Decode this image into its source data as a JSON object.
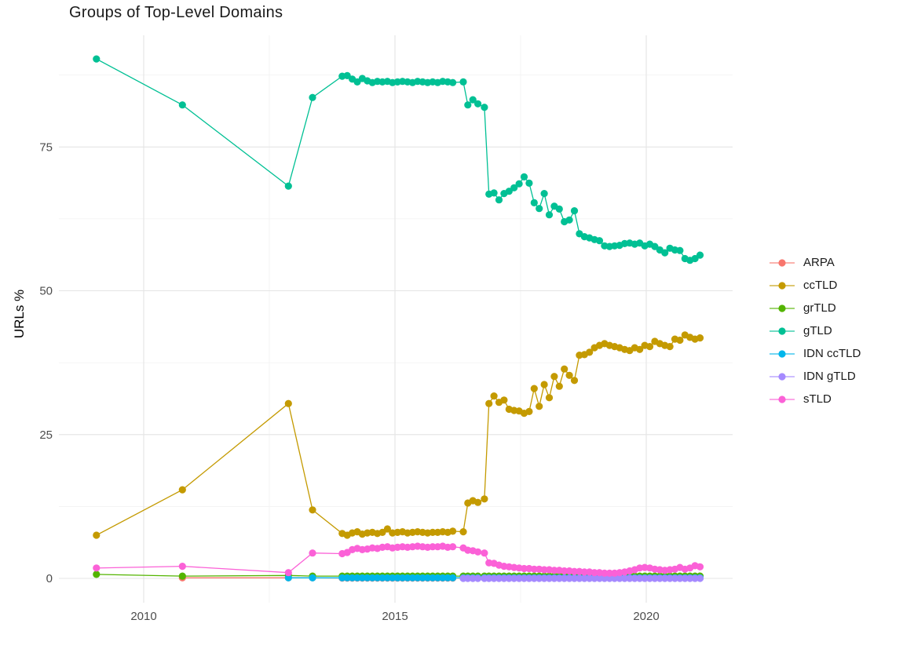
{
  "page": {
    "background": "#FFFFFF"
  },
  "chart_data": {
    "type": "line",
    "title": "Groups of Top-Level Domains",
    "xlabel": "",
    "ylabel": "URLs %",
    "grid": "on",
    "legend_position": "right",
    "point_style": "line-with-dots",
    "background_color": "#FFFFFF",
    "major_gridline_color": "#E4E4E4",
    "minor_gridline_color": "#F1F1F1",
    "tick_label_color": "#4D4D4D",
    "x_ticks": [
      2010,
      2015,
      2020
    ],
    "x_minor_gridlines": [
      2012.5,
      2017.5
    ],
    "y_ticks": [
      0,
      25,
      50,
      75
    ],
    "y_minor_gridlines": [
      12.5,
      37.5,
      62.5,
      87.5
    ],
    "xlim": [
      2008.31,
      2021.72
    ],
    "ylim": [
      -4.2,
      94.4
    ],
    "x_grids": {
      "g1": [
        2013.95,
        2014.05,
        2014.15,
        2014.25,
        2014.35,
        2014.45,
        2014.55,
        2014.65,
        2014.75,
        2014.85,
        2014.95,
        2015.05,
        2015.15,
        2015.25,
        2015.35,
        2015.45,
        2015.55,
        2015.65,
        2015.75,
        2015.85,
        2015.95,
        2016.05,
        2016.15
      ],
      "g2": [
        2016.36,
        2016.45,
        2016.55,
        2016.65,
        2016.78
      ],
      "g3": [
        2016.87,
        2016.97,
        2017.07,
        2017.17,
        2017.27,
        2017.37,
        2017.47,
        2017.57,
        2017.67,
        2017.77,
        2017.87,
        2017.97,
        2018.07,
        2018.17,
        2018.27,
        2018.37,
        2018.47,
        2018.57,
        2018.67,
        2018.77,
        2018.87,
        2018.97,
        2019.07,
        2019.17,
        2019.27,
        2019.37,
        2019.47,
        2019.57,
        2019.67,
        2019.77,
        2019.87,
        2019.97,
        2020.07,
        2020.17,
        2020.27,
        2020.37,
        2020.47,
        2020.57,
        2020.67,
        2020.77,
        2020.87,
        2020.97,
        2021.07
      ]
    },
    "series": [
      {
        "name": "ARPA",
        "color": "#F8766D",
        "segments": [
          {
            "x": [
              2010.77,
              2012.88,
              2013.36
            ],
            "y": [
              0.1,
              0.1,
              0.1
            ]
          },
          {
            "grid": "g1",
            "const": 0.05
          },
          {
            "grid": "g2",
            "const": 0.05
          },
          {
            "grid": "g3",
            "const": 0.05
          }
        ]
      },
      {
        "name": "ccTLD",
        "color": "#C49A00",
        "segments": [
          {
            "x": [
              2009.06,
              2010.77,
              2012.88,
              2013.36
            ],
            "y": [
              7.5,
              15.4,
              30.4,
              11.9
            ]
          },
          {
            "grid": "g1",
            "y": [
              7.8,
              7.5,
              7.9,
              8.1,
              7.7,
              7.9,
              8.0,
              7.8,
              8.0,
              8.6,
              7.9,
              8.0,
              8.1,
              7.9,
              8.0,
              8.1,
              8.0,
              7.9,
              8.0,
              8.0,
              8.1,
              8.0,
              8.2
            ]
          },
          {
            "grid": "g2",
            "y": [
              8.1,
              13.1,
              13.5,
              13.2,
              13.8
            ]
          },
          {
            "grid": "g3",
            "y": [
              30.4,
              31.7,
              30.6,
              31.0,
              29.4,
              29.2,
              29.1,
              28.7,
              29.0,
              33.0,
              29.9,
              33.7,
              31.4,
              35.1,
              33.4,
              36.4,
              35.3,
              34.4,
              38.8,
              38.9,
              39.3,
              40.1,
              40.5,
              40.8,
              40.5,
              40.3,
              40.1,
              39.8,
              39.6,
              40.1,
              39.8,
              40.5,
              40.3,
              41.2,
              40.8,
              40.5,
              40.3,
              41.6,
              41.4,
              42.3,
              41.9,
              41.6,
              41.8
            ]
          }
        ]
      },
      {
        "name": "grTLD",
        "color": "#53B400",
        "segments": [
          {
            "x": [
              2009.06,
              2010.77,
              2012.88,
              2013.36
            ],
            "y": [
              0.7,
              0.4,
              0.5,
              0.4
            ]
          },
          {
            "grid": "g1",
            "const": 0.4
          },
          {
            "grid": "g2",
            "const": 0.4
          },
          {
            "grid": "g3",
            "const": 0.4
          }
        ]
      },
      {
        "name": "gTLD",
        "color": "#00C094",
        "segments": [
          {
            "x": [
              2009.06,
              2010.77,
              2012.88,
              2013.36
            ],
            "y": [
              90.3,
              82.3,
              68.2,
              83.6
            ]
          },
          {
            "grid": "g1",
            "y": [
              87.3,
              87.4,
              86.8,
              86.3,
              86.9,
              86.5,
              86.2,
              86.4,
              86.3,
              86.4,
              86.2,
              86.3,
              86.4,
              86.3,
              86.2,
              86.4,
              86.3,
              86.2,
              86.3,
              86.2,
              86.4,
              86.3,
              86.2
            ]
          },
          {
            "grid": "g2",
            "y": [
              86.3,
              82.3,
              83.2,
              82.5,
              81.9
            ]
          },
          {
            "grid": "g3",
            "y": [
              66.8,
              67.0,
              65.8,
              66.9,
              67.3,
              67.9,
              68.6,
              69.8,
              68.7,
              65.3,
              64.3,
              66.9,
              63.2,
              64.7,
              64.2,
              62.0,
              62.3,
              63.9,
              59.9,
              59.4,
              59.2,
              58.9,
              58.7,
              57.8,
              57.7,
              57.8,
              57.9,
              58.2,
              58.3,
              58.1,
              58.3,
              57.8,
              58.1,
              57.7,
              57.1,
              56.6,
              57.4,
              57.1,
              57.0,
              55.6,
              55.3,
              55.6,
              56.2
            ]
          }
        ]
      },
      {
        "name": "IDN ccTLD",
        "color": "#00B6EB",
        "segments": [
          {
            "x": [
              2012.88,
              2013.36
            ],
            "y": [
              0.1,
              0.1
            ]
          },
          {
            "grid": "g1",
            "const": 0.1
          },
          {
            "grid": "g2",
            "const": 0.1
          },
          {
            "grid": "g3",
            "const": 0.1
          }
        ]
      },
      {
        "name": "IDN gTLD",
        "color": "#A58AFF",
        "segments": [
          {
            "grid": "g2",
            "const": 0.0
          },
          {
            "grid": "g3",
            "const": 0.0
          }
        ]
      },
      {
        "name": "sTLD",
        "color": "#FB61D7",
        "segments": [
          {
            "x": [
              2009.06,
              2010.77,
              2012.88,
              2013.36
            ],
            "y": [
              1.8,
              2.1,
              1.0,
              4.4
            ]
          },
          {
            "grid": "g1",
            "y": [
              4.3,
              4.5,
              5.0,
              5.2,
              5.0,
              5.1,
              5.3,
              5.2,
              5.4,
              5.5,
              5.3,
              5.4,
              5.5,
              5.4,
              5.5,
              5.6,
              5.5,
              5.4,
              5.5,
              5.5,
              5.6,
              5.4,
              5.5
            ]
          },
          {
            "grid": "g2",
            "y": [
              5.3,
              4.9,
              4.8,
              4.6,
              4.4
            ]
          },
          {
            "grid": "g3",
            "y": [
              2.7,
              2.6,
              2.3,
              2.1,
              2.0,
              1.9,
              1.8,
              1.7,
              1.7,
              1.6,
              1.6,
              1.5,
              1.5,
              1.4,
              1.4,
              1.3,
              1.3,
              1.2,
              1.2,
              1.1,
              1.1,
              1.0,
              1.0,
              0.9,
              0.9,
              0.9,
              1.0,
              1.1,
              1.3,
              1.5,
              1.8,
              1.9,
              1.8,
              1.6,
              1.5,
              1.4,
              1.5,
              1.6,
              1.9,
              1.6,
              1.8,
              2.2,
              2.0
            ]
          }
        ]
      }
    ]
  }
}
